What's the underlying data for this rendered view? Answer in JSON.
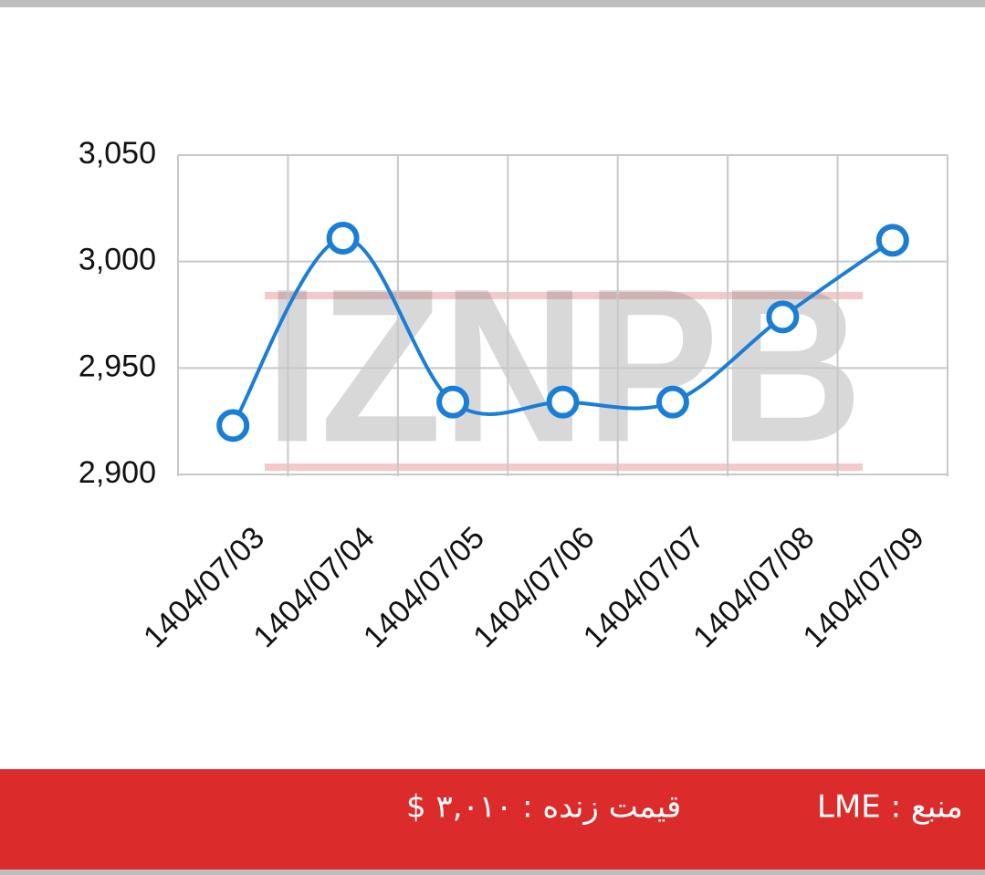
{
  "chart_data": {
    "type": "line",
    "categories": [
      "1404/07/03",
      "1404/07/04",
      "1404/07/05",
      "1404/07/06",
      "1404/07/07",
      "1404/07/08",
      "1404/07/09"
    ],
    "values": [
      2923,
      3011,
      2934,
      2934,
      2934,
      2974,
      3010
    ],
    "color": "#1a7ed6",
    "ylim": [
      2900,
      3050
    ],
    "yticks": [
      {
        "value": 2900,
        "label": "2,900"
      },
      {
        "value": 2950,
        "label": "2,950"
      },
      {
        "value": 3000,
        "label": "3,000"
      },
      {
        "value": 3050,
        "label": "3,050"
      }
    ],
    "grid": true,
    "watermark": "IZNPB"
  },
  "footer": {
    "live_price": "قیمت زنده : ۳,۰۱۰ $",
    "source": "منبع : LME"
  }
}
